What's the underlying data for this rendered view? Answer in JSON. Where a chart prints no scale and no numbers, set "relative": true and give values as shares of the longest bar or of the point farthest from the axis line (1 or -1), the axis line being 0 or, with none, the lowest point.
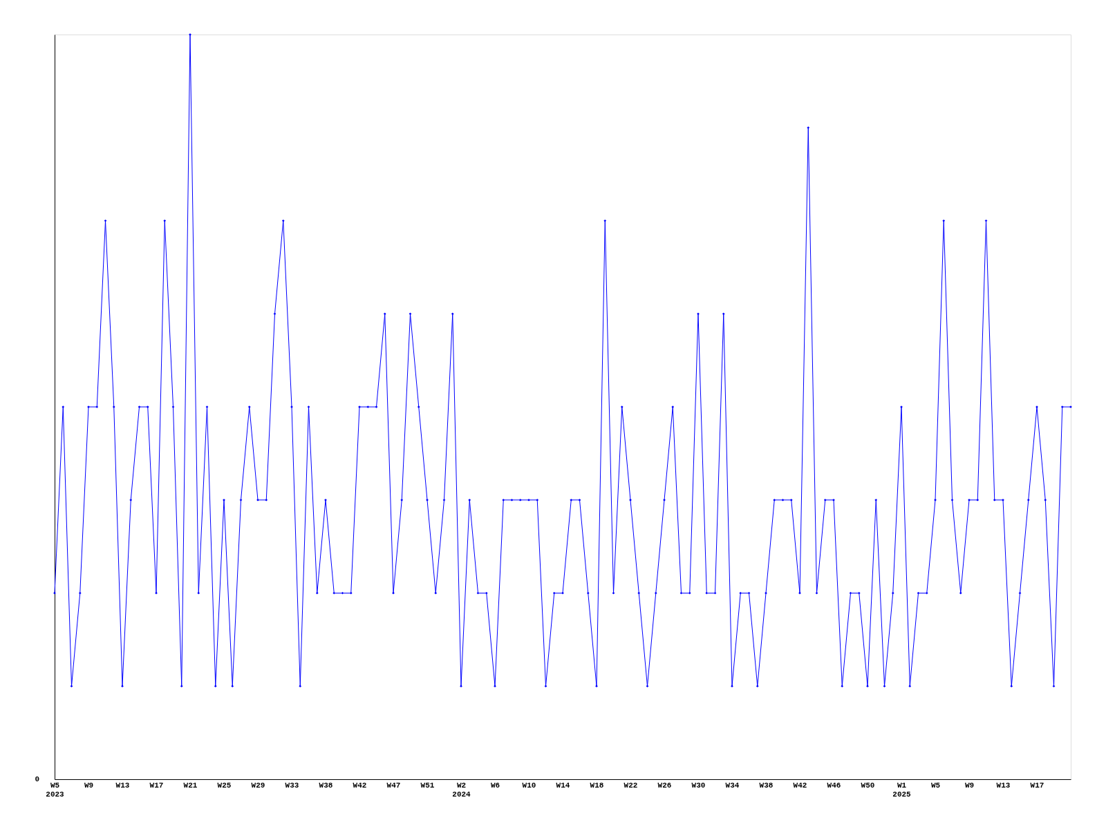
{
  "chart_data": {
    "type": "line",
    "relative": true,
    "color": "#0000ff",
    "marker": "diamond",
    "line_style": "solid",
    "grid": false,
    "annotations": [
      "0"
    ],
    "categories": [
      "W5\n2023",
      null,
      null,
      null,
      "W9",
      null,
      null,
      null,
      "W13",
      null,
      null,
      null,
      "W17",
      null,
      null,
      null,
      "W21",
      null,
      null,
      null,
      "W25",
      null,
      null,
      null,
      "W29",
      null,
      null,
      null,
      "W33",
      null,
      null,
      null,
      "W38",
      null,
      null,
      null,
      "W42",
      null,
      null,
      null,
      "W47",
      null,
      null,
      null,
      "W51",
      null,
      null,
      null,
      "W2\n2024",
      null,
      null,
      null,
      "W6",
      null,
      null,
      null,
      "W10",
      null,
      null,
      null,
      "W14",
      null,
      null,
      null,
      "W18",
      null,
      null,
      null,
      "W22",
      null,
      null,
      null,
      "W26",
      null,
      null,
      null,
      "W30",
      null,
      null,
      null,
      "W34",
      null,
      null,
      null,
      "W38",
      null,
      null,
      null,
      "W42",
      null,
      null,
      null,
      "W46",
      null,
      null,
      null,
      "W50",
      null,
      null,
      null,
      "W1\n2025",
      null,
      null,
      null,
      "W5",
      null,
      null,
      null,
      "W9",
      null,
      null,
      null,
      "W13",
      null,
      null,
      null,
      "W17",
      null,
      null,
      null,
      null
    ],
    "values": [
      0.25,
      0.5,
      0.125,
      0.25,
      0.5,
      0.5,
      0.75,
      0.5,
      0.125,
      0.375,
      0.5,
      0.5,
      0.25,
      0.75,
      0.5,
      0.125,
      1,
      0.25,
      0.5,
      0.125,
      0.375,
      0.125,
      0.375,
      0.5,
      0.375,
      0.375,
      0.625,
      0.75,
      0.5,
      0.125,
      0.5,
      0.25,
      0.375,
      0.25,
      0.25,
      0.25,
      0.5,
      0.5,
      0.5,
      0.625,
      0.25,
      0.375,
      0.625,
      0.5,
      0.375,
      0.25,
      0.375,
      0.625,
      0.125,
      0.375,
      0.25,
      0.25,
      0.125,
      0.375,
      0.375,
      0.375,
      0.375,
      0.375,
      0.125,
      0.25,
      0.25,
      0.375,
      0.375,
      0.25,
      0.125,
      0.75,
      0.25,
      0.5,
      0.375,
      0.25,
      0.125,
      0.25,
      0.375,
      0.5,
      0.25,
      0.25,
      0.625,
      0.25,
      0.25,
      0.625,
      0.125,
      0.25,
      0.25,
      0.125,
      0.25,
      0.375,
      0.375,
      0.375,
      0.25,
      0.875,
      0.25,
      0.375,
      0.375,
      0.125,
      0.25,
      0.25,
      0.125,
      0.375,
      0.125,
      0.25,
      0.5,
      0.125,
      0.25,
      0.25,
      0.375,
      0.75,
      0.375,
      0.25,
      0.375,
      0.375,
      0.75,
      0.375,
      0.375,
      0.125,
      0.25,
      0.375,
      0.5,
      0.375,
      0.125,
      0.5,
      0.5
    ]
  }
}
